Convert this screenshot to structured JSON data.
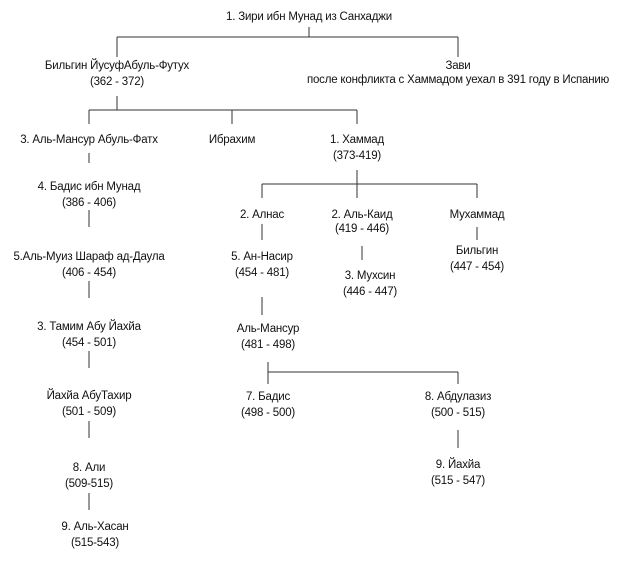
{
  "root": {
    "name": "1. Зири ибн Мунад из Санхаджи"
  },
  "bilgin_yusuf": {
    "name": "Бильгин ЙусуфАбуль-Футух",
    "years": "(362 - 372)"
  },
  "zawi": {
    "name": "Зави",
    "note": "после конфликта с Хаммадом уехал в 391 году в Испанию"
  },
  "al_mansur_abul_fath": {
    "name": "3. Аль-Мансур Абуль-Фатх"
  },
  "ibrahim": {
    "name": "Ибрахим"
  },
  "hammad": {
    "name": "1. Хаммад",
    "years": "(373-419)"
  },
  "badis_ibn_munad": {
    "name": "4. Бадис ибн Мунад",
    "years": "(386 - 406)"
  },
  "al_muiz": {
    "name": "5.Аль-Муиз Шараф ад-Даула",
    "years": "(406 - 454)"
  },
  "tamim": {
    "name": "3. Тамим Абу Йахйа",
    "years": "(454 - 501)"
  },
  "yahya_abu_tahir": {
    "name": "Йахйа АбуТахир",
    "years": "(501 - 509)"
  },
  "ali": {
    "name": "8. Али",
    "years": "(509-515)"
  },
  "al_hasan": {
    "name": "9. Аль-Хасан",
    "years": "(515-543)"
  },
  "alnas": {
    "name": "2. Алнас"
  },
  "al_kaid": {
    "name": "2. Аль-Каид",
    "years": "(419 - 446)"
  },
  "muhammad": {
    "name": "Мухаммад"
  },
  "an_nasir": {
    "name": "5. Ан-Насир",
    "years": "(454 - 481)"
  },
  "muhsin": {
    "name": "3. Мухсин",
    "years": "(446 - 447)"
  },
  "bilgin": {
    "name": "Бильгин",
    "years": "(447 - 454)"
  },
  "al_mansur": {
    "name": "Аль-Мансур",
    "years": "(481 - 498)"
  },
  "badis": {
    "name": "7. Бадис",
    "years": "(498 - 500)"
  },
  "abdulaziz": {
    "name": "8. Абдулазиз",
    "years": "(500 - 515)"
  },
  "yahya": {
    "name": "9. Йахйа",
    "years": "(515 - 547)"
  }
}
